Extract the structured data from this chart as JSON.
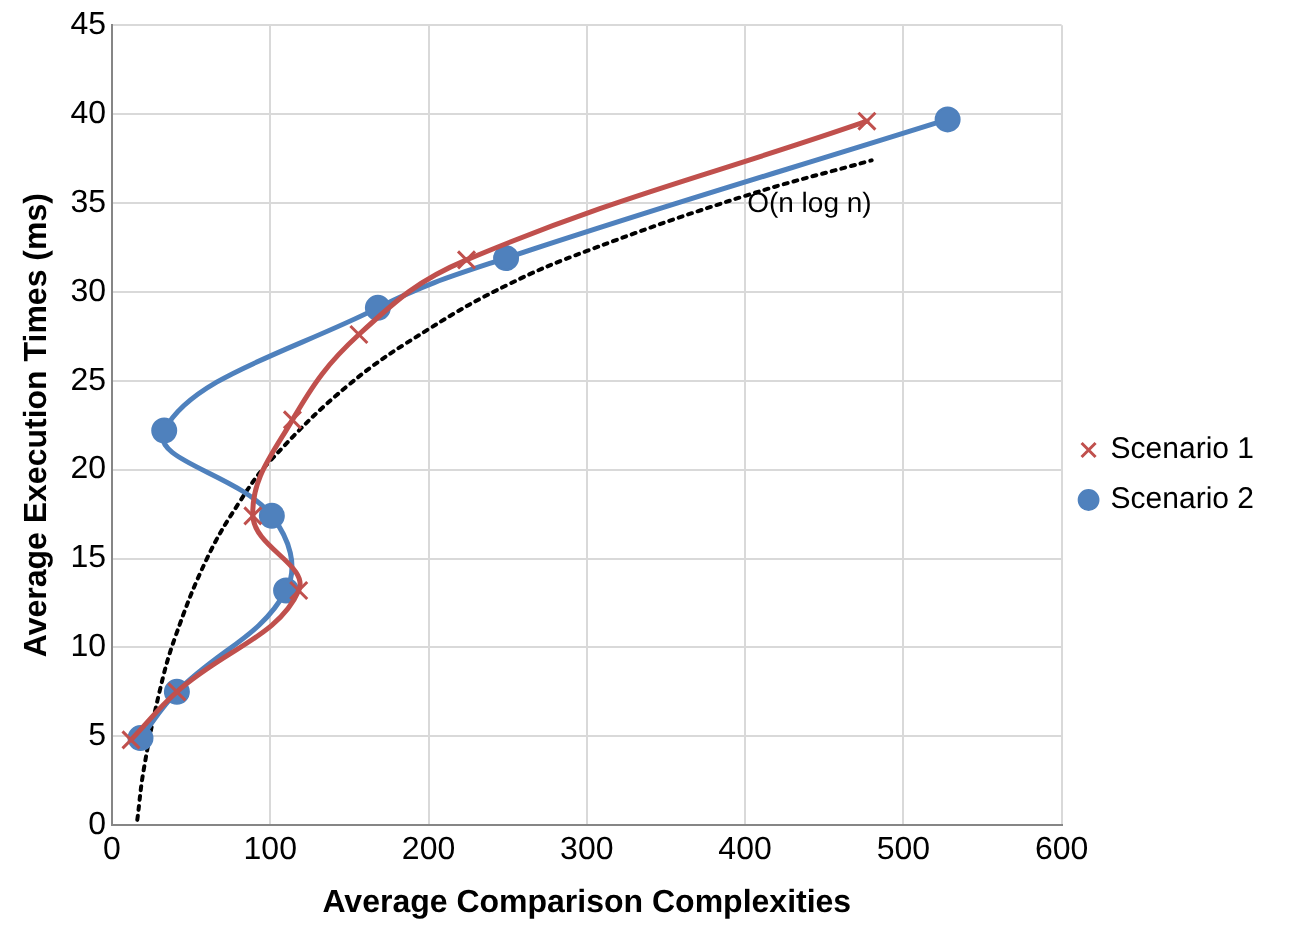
{
  "chart_data": {
    "type": "line",
    "xlabel": "Average Comparison Complexities",
    "ylabel": "Average Execution Times (ms)",
    "xlim": [
      0,
      600
    ],
    "xticks": [
      0,
      100,
      200,
      300,
      400,
      500,
      600
    ],
    "ylim": [
      0,
      45
    ],
    "yticks": [
      0,
      5,
      10,
      15,
      20,
      25,
      30,
      35,
      40,
      45
    ],
    "grid": true,
    "legend": "right",
    "series": [
      {
        "name": "Scenario 1",
        "color": "#c0504d",
        "marker": "cross",
        "x": [
          12,
          41,
          118,
          89,
          114,
          156,
          224,
          477
        ],
        "values": [
          4.8,
          7.5,
          13.2,
          17.4,
          22.8,
          27.6,
          31.8,
          39.6
        ]
      },
      {
        "name": "Scenario 2",
        "color": "#4f81bd",
        "marker": "circle",
        "x": [
          18,
          41,
          110,
          101,
          33,
          168,
          249,
          528
        ],
        "values": [
          4.9,
          7.5,
          13.2,
          17.4,
          22.2,
          29.1,
          31.9,
          39.7
        ]
      },
      {
        "color": "#000000",
        "marker": "none",
        "line_style": "dotted",
        "x": [
          16,
          20,
          30,
          40,
          60,
          80,
          100,
          150,
          200,
          250,
          300,
          400,
          480
        ],
        "values": [
          0.3,
          3.1,
          7.5,
          10.6,
          15.0,
          18.1,
          20.5,
          24.8,
          27.9,
          30.4,
          32.3,
          35.4,
          37.4
        ]
      }
    ],
    "annotations": [
      "O(n log n)"
    ]
  }
}
